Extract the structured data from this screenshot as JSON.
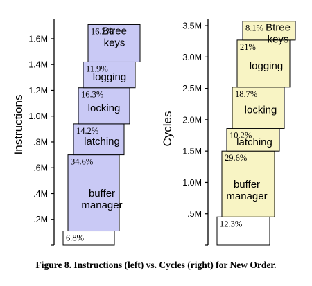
{
  "caption": "Figure 8. Instructions (left) vs. Cycles (right) for New Order.",
  "colors": {
    "instructions_fill": "#c9c9f5",
    "cycles_fill": "#f8f4c4",
    "bottom_fill": "#ffffff",
    "stroke": "#000000"
  },
  "chart_data": [
    {
      "type": "bar",
      "stacked": true,
      "title": "",
      "ylabel": "Instructions",
      "xlabel": "",
      "ylim": [
        0,
        1.75
      ],
      "yticks": [
        ".2M",
        ".4M",
        ".6M",
        ".8M",
        "1.0M",
        "1.2M",
        "1.4M",
        "1.6M"
      ],
      "yticks_values": [
        0.2,
        0.4,
        0.6,
        0.8,
        1.0,
        1.2,
        1.4,
        1.6
      ],
      "unit": "M",
      "segments": [
        {
          "label": "",
          "pct": "6.8%",
          "start": 0.0,
          "end": 0.11
        },
        {
          "label": "buffer\nmanager",
          "pct": "34.6%",
          "start": 0.11,
          "end": 0.7
        },
        {
          "label": "latching",
          "pct": "14.2%",
          "start": 0.7,
          "end": 0.94
        },
        {
          "label": "locking",
          "pct": "16.3%",
          "start": 0.94,
          "end": 1.22
        },
        {
          "label": "logging",
          "pct": "11.9%",
          "start": 1.22,
          "end": 1.42
        },
        {
          "label": "Btree\nkeys",
          "pct": "16.2%",
          "start": 1.42,
          "end": 1.71
        }
      ]
    },
    {
      "type": "bar",
      "stacked": true,
      "title": "",
      "ylabel": "Cycles",
      "xlabel": "",
      "ylim": [
        0,
        3.6
      ],
      "yticks": [
        ".5M",
        "1.0M",
        "1.5M",
        "2.0M",
        "2.5M",
        "3.0M",
        "3.5M"
      ],
      "yticks_values": [
        0.5,
        1.0,
        1.5,
        2.0,
        2.5,
        3.0,
        3.5
      ],
      "unit": "M",
      "segments": [
        {
          "label": "",
          "pct": "12.3%",
          "start": 0.0,
          "end": 0.45
        },
        {
          "label": "buffer\nmanager",
          "pct": "29.6%",
          "start": 0.45,
          "end": 1.5
        },
        {
          "label": "latching",
          "pct": "10.2%",
          "start": 1.5,
          "end": 1.86
        },
        {
          "label": "locking",
          "pct": "18.7%",
          "start": 1.86,
          "end": 2.52
        },
        {
          "label": "logging",
          "pct": "21%",
          "start": 2.52,
          "end": 3.27
        },
        {
          "label": "Btree\nkeys",
          "pct": "8.1%",
          "start": 3.27,
          "end": 3.57
        }
      ]
    }
  ]
}
